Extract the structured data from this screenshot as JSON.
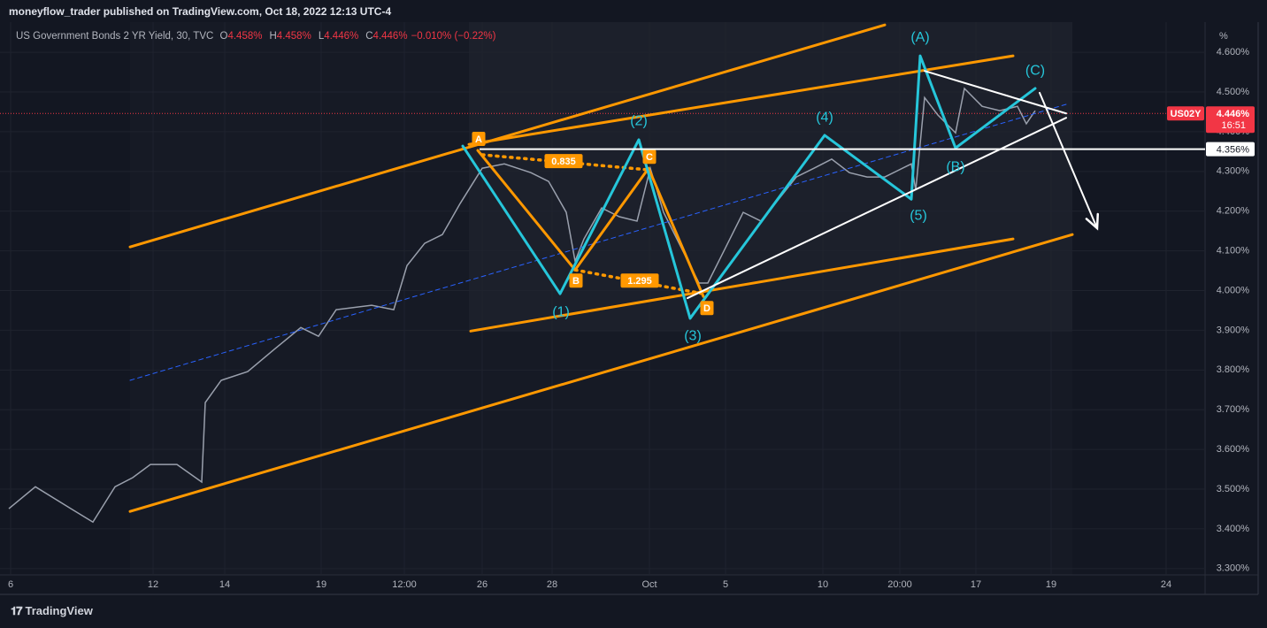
{
  "header": {
    "publisher": "moneyflow_trader published on TradingView.com, Oct 18, 2022 12:13 UTC-4"
  },
  "chart_data": {
    "type": "line",
    "title": "US Government Bonds 2 YR Yield, 30, TVC",
    "ohlc": [
      {
        "name": "O",
        "label": "4.458%"
      },
      {
        "name": "H",
        "label": "4.458%"
      },
      {
        "name": "L",
        "label": "4.446%"
      },
      {
        "name": "C",
        "label": "4.446%"
      }
    ],
    "change": "−0.010% (−0.22%)",
    "y_unit": "%",
    "color": "#9aa0ad",
    "x": [
      1,
      4,
      8,
      10.5,
      13,
      15,
      17,
      20,
      22.8,
      23.2,
      25,
      28,
      31,
      34,
      36,
      38,
      42,
      44.5,
      46,
      48,
      50,
      52,
      54.5,
      57,
      60,
      62,
      64,
      65,
      66,
      68,
      70,
      72,
      73.5,
      75,
      77,
      79,
      80,
      82,
      84,
      86,
      88,
      90,
      92,
      94,
      96,
      98,
      100,
      102,
      103,
      103.5,
      104.5,
      106,
      108,
      109,
      111,
      113,
      115,
      116,
      117
    ],
    "values": [
      3.451,
      3.506,
      3.451,
      3.417,
      3.506,
      3.529,
      3.562,
      3.562,
      3.518,
      3.718,
      3.774,
      3.796,
      3.852,
      3.907,
      3.885,
      3.952,
      3.963,
      3.952,
      4.063,
      4.119,
      4.141,
      4.219,
      4.308,
      4.319,
      4.297,
      4.275,
      4.197,
      4.074,
      4.13,
      4.208,
      4.186,
      4.175,
      4.308,
      4.197,
      4.108,
      4.019,
      4.019,
      4.108,
      4.197,
      4.175,
      4.23,
      4.286,
      4.308,
      4.331,
      4.297,
      4.286,
      4.286,
      4.308,
      4.319,
      4.253,
      4.486,
      4.442,
      4.397,
      4.509,
      4.464,
      4.453,
      4.464,
      4.42,
      4.453
    ],
    "xlim": [
      0,
      136.2
    ],
    "ylim": [
      3.284,
      4.676
    ],
    "xticks": [
      {
        "value": 1.2,
        "label": "6"
      },
      {
        "value": 17.3,
        "label": "12"
      },
      {
        "value": 25.4,
        "label": "14"
      },
      {
        "value": 36.3,
        "label": "19"
      },
      {
        "value": 45.7,
        "label": "12:00"
      },
      {
        "value": 54.5,
        "label": "26"
      },
      {
        "value": 62.4,
        "label": "28"
      },
      {
        "value": 73.4,
        "label": "Oct"
      },
      {
        "value": 82,
        "label": "5"
      },
      {
        "value": 93,
        "label": "10"
      },
      {
        "value": 101.7,
        "label": "20:00"
      },
      {
        "value": 110.3,
        "label": "17"
      },
      {
        "value": 118.8,
        "label": "19"
      },
      {
        "value": 131.8,
        "label": "24"
      }
    ],
    "yticks": [
      {
        "value": 3.3,
        "label": "3.300%"
      },
      {
        "value": 3.4,
        "label": "3.400%"
      },
      {
        "value": 3.5,
        "label": "3.500%"
      },
      {
        "value": 3.6,
        "label": "3.600%"
      },
      {
        "value": 3.7,
        "label": "3.700%"
      },
      {
        "value": 3.8,
        "label": "3.800%"
      },
      {
        "value": 3.9,
        "label": "3.900%"
      },
      {
        "value": 4.0,
        "label": "4.000%"
      },
      {
        "value": 4.1,
        "label": "4.100%"
      },
      {
        "value": 4.2,
        "label": "4.200%"
      },
      {
        "value": 4.3,
        "label": "4.300%"
      },
      {
        "value": 4.4,
        "label": "4.400%"
      },
      {
        "value": 4.5,
        "label": "4.500%"
      },
      {
        "value": 4.6,
        "label": "4.600%"
      }
    ],
    "grid": true,
    "last_price": {
      "symbol": "US02Y",
      "value": 4.446,
      "label": "4.446%",
      "countdown": "16:51",
      "color": "#f23645"
    },
    "level": {
      "value": 4.356,
      "label": "4.356%",
      "from": 54.2,
      "color": "#ffffff"
    },
    "drawings": [
      {
        "kind": "line",
        "color": "#ff9800",
        "points": [
          [
            14.7,
            4.11
          ],
          [
            100,
            4.669
          ]
        ]
      },
      {
        "kind": "line",
        "color": "#ff9800",
        "points": [
          [
            14.7,
            3.444
          ],
          [
            121.2,
            4.141
          ]
        ]
      },
      {
        "kind": "line",
        "color": "#ff9800",
        "points": [
          [
            53,
            4.368
          ],
          [
            114.5,
            4.591
          ]
        ]
      },
      {
        "kind": "line",
        "color": "#ff9800",
        "points": [
          [
            53.2,
            3.898
          ],
          [
            114.5,
            4.13
          ]
        ]
      },
      {
        "kind": "dashed",
        "color": "#2962ff",
        "points": [
          [
            14.7,
            3.774
          ],
          [
            120.5,
            4.469
          ]
        ]
      },
      {
        "kind": "line",
        "color": "#ff9800",
        "points": [
          [
            54,
            4.353
          ],
          [
            65,
            4.052
          ],
          [
            73.3,
            4.308
          ],
          [
            79.5,
            3.985
          ]
        ]
      },
      {
        "kind": "dotted",
        "color": "#ff9800",
        "points": [
          [
            54.5,
            4.342
          ],
          [
            73.3,
            4.304
          ]
        ]
      },
      {
        "kind": "dotted",
        "color": "#ff9800",
        "points": [
          [
            65,
            4.052
          ],
          [
            79.5,
            3.992
          ]
        ]
      },
      {
        "kind": "line",
        "color": "#26c6da",
        "points": [
          [
            52.3,
            4.364
          ],
          [
            63.3,
            3.992
          ],
          [
            72.2,
            4.38
          ],
          [
            78,
            3.93
          ],
          [
            93.2,
            4.391
          ],
          [
            103,
            4.23
          ],
          [
            104,
            4.591
          ],
          [
            108,
            4.359
          ],
          [
            117,
            4.509
          ]
        ]
      },
      {
        "kind": "thin",
        "color": "#ffffff",
        "points": [
          [
            104.5,
            4.553
          ],
          [
            120.5,
            4.446
          ]
        ]
      },
      {
        "kind": "thin",
        "color": "#ffffff",
        "points": [
          [
            77.7,
            3.981
          ],
          [
            120.5,
            4.435
          ]
        ]
      },
      {
        "kind": "arrow",
        "color": "#ffffff",
        "points": [
          [
            117.5,
            4.498
          ],
          [
            124,
            4.157
          ]
        ]
      },
      {
        "kind": "tag",
        "color": "#ff9800",
        "text": "A",
        "at": [
          54.1,
          4.382
        ]
      },
      {
        "kind": "tag",
        "color": "#ff9800",
        "text": "B",
        "at": [
          65.1,
          4.025
        ]
      },
      {
        "kind": "tag",
        "color": "#ff9800",
        "text": "C",
        "at": [
          73.4,
          4.337
        ]
      },
      {
        "kind": "tag",
        "color": "#ff9800",
        "text": "D",
        "at": [
          79.9,
          3.956
        ]
      },
      {
        "kind": "tag",
        "color": "#ff9800",
        "text": 0.835,
        "at": [
          63.7,
          4.326
        ]
      },
      {
        "kind": "tag",
        "color": "#ff9800",
        "text": 1.295,
        "at": [
          72.3,
          4.025
        ]
      },
      {
        "kind": "text",
        "color": "#26c6da",
        "text": "(1)",
        "at": [
          63.4,
          3.945
        ]
      },
      {
        "kind": "text",
        "color": "#26c6da",
        "text": "(2)",
        "at": [
          72.2,
          4.426
        ]
      },
      {
        "kind": "text",
        "color": "#26c6da",
        "text": "(3)",
        "at": [
          78.3,
          3.885
        ]
      },
      {
        "kind": "text",
        "color": "#26c6da",
        "text": "(4)",
        "at": [
          93.2,
          4.435
        ]
      },
      {
        "kind": "text",
        "color": "#26c6da",
        "text": "(5)",
        "at": [
          103.8,
          4.188
        ]
      },
      {
        "kind": "text",
        "color": "#26c6da",
        "text": "(A)",
        "at": [
          104,
          4.636
        ]
      },
      {
        "kind": "text",
        "color": "#26c6da",
        "text": "(B)",
        "at": [
          108,
          4.31
        ]
      },
      {
        "kind": "text",
        "color": "#26c6da",
        "text": "(C)",
        "at": [
          117,
          4.553
        ]
      }
    ]
  },
  "footer": {
    "brand": "TradingView"
  }
}
